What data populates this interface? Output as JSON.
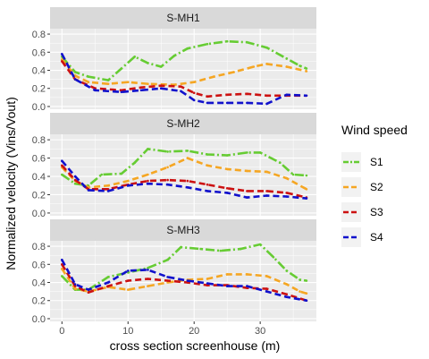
{
  "chart_data": {
    "type": "line",
    "facets": [
      "S-MH1",
      "S-MH2",
      "S-MH3"
    ],
    "xlabel": "cross section screenhouse (m)",
    "ylabel": "Normalized velocity (Vins/Vout)",
    "xlim": [
      -1.8,
      38.5
    ],
    "ylim": [
      -0.03,
      0.86
    ],
    "x_ticks": [
      0,
      10,
      20,
      30
    ],
    "y_ticks": [
      0.0,
      0.2,
      0.4,
      0.6,
      0.8
    ],
    "y_tick_labels": [
      "0.0",
      "0.2",
      "0.4",
      "0.6",
      "0.8"
    ],
    "legend": {
      "title": "Wind speed",
      "position": "right"
    },
    "series": [
      {
        "name": "S1",
        "color": "#66cc33"
      },
      {
        "name": "S2",
        "color": "#f5a623"
      },
      {
        "name": "S3",
        "color": "#cc1111"
      },
      {
        "name": "S4",
        "color": "#1111cc"
      }
    ],
    "panels": [
      {
        "facet": "S-MH1",
        "data": {
          "S1": [
            [
              0,
              0.55
            ],
            [
              2,
              0.38
            ],
            [
              4,
              0.33
            ],
            [
              7,
              0.29
            ],
            [
              9,
              0.42
            ],
            [
              11,
              0.55
            ],
            [
              13,
              0.48
            ],
            [
              15,
              0.44
            ],
            [
              17,
              0.56
            ],
            [
              19,
              0.64
            ],
            [
              22,
              0.69
            ],
            [
              25,
              0.72
            ],
            [
              28,
              0.71
            ],
            [
              31,
              0.65
            ],
            [
              34,
              0.53
            ],
            [
              36,
              0.45
            ],
            [
              37,
              0.42
            ]
          ],
          "S2": [
            [
              0,
              0.52
            ],
            [
              2,
              0.34
            ],
            [
              4,
              0.27
            ],
            [
              7,
              0.25
            ],
            [
              10,
              0.27
            ],
            [
              13,
              0.25
            ],
            [
              17,
              0.24
            ],
            [
              20,
              0.27
            ],
            [
              23,
              0.33
            ],
            [
              26,
              0.38
            ],
            [
              29,
              0.44
            ],
            [
              31,
              0.47
            ],
            [
              34,
              0.44
            ],
            [
              37,
              0.39
            ]
          ],
          "S3": [
            [
              0,
              0.5
            ],
            [
              2,
              0.3
            ],
            [
              5,
              0.2
            ],
            [
              9,
              0.18
            ],
            [
              12,
              0.21
            ],
            [
              15,
              0.23
            ],
            [
              18,
              0.22
            ],
            [
              20,
              0.15
            ],
            [
              22,
              0.11
            ],
            [
              25,
              0.13
            ],
            [
              28,
              0.14
            ],
            [
              31,
              0.12
            ],
            [
              34,
              0.12
            ],
            [
              37,
              0.12
            ]
          ],
          "S4": [
            [
              0,
              0.58
            ],
            [
              2,
              0.3
            ],
            [
              5,
              0.18
            ],
            [
              9,
              0.16
            ],
            [
              12,
              0.18
            ],
            [
              15,
              0.2
            ],
            [
              18,
              0.17
            ],
            [
              20,
              0.07
            ],
            [
              22,
              0.04
            ],
            [
              25,
              0.04
            ],
            [
              28,
              0.04
            ],
            [
              31,
              0.03
            ],
            [
              34,
              0.13
            ],
            [
              37,
              0.12
            ]
          ]
        }
      },
      {
        "facet": "S-MH2",
        "data": {
          "S1": [
            [
              0,
              0.42
            ],
            [
              2,
              0.32
            ],
            [
              4,
              0.3
            ],
            [
              6,
              0.42
            ],
            [
              9,
              0.43
            ],
            [
              11,
              0.55
            ],
            [
              13,
              0.7
            ],
            [
              16,
              0.67
            ],
            [
              19,
              0.68
            ],
            [
              22,
              0.64
            ],
            [
              25,
              0.63
            ],
            [
              28,
              0.66
            ],
            [
              30,
              0.66
            ],
            [
              33,
              0.55
            ],
            [
              35,
              0.42
            ],
            [
              37,
              0.41
            ]
          ],
          "S2": [
            [
              0,
              0.5
            ],
            [
              2,
              0.35
            ],
            [
              4,
              0.28
            ],
            [
              7,
              0.3
            ],
            [
              10,
              0.35
            ],
            [
              13,
              0.42
            ],
            [
              16,
              0.5
            ],
            [
              19,
              0.6
            ],
            [
              22,
              0.52
            ],
            [
              25,
              0.48
            ],
            [
              28,
              0.46
            ],
            [
              31,
              0.45
            ],
            [
              34,
              0.38
            ],
            [
              37,
              0.26
            ]
          ],
          "S3": [
            [
              0,
              0.52
            ],
            [
              2,
              0.36
            ],
            [
              4,
              0.26
            ],
            [
              7,
              0.26
            ],
            [
              10,
              0.31
            ],
            [
              13,
              0.35
            ],
            [
              16,
              0.36
            ],
            [
              19,
              0.35
            ],
            [
              22,
              0.31
            ],
            [
              25,
              0.27
            ],
            [
              28,
              0.24
            ],
            [
              31,
              0.24
            ],
            [
              34,
              0.22
            ],
            [
              37,
              0.17
            ]
          ],
          "S4": [
            [
              0,
              0.57
            ],
            [
              2,
              0.4
            ],
            [
              4,
              0.25
            ],
            [
              7,
              0.24
            ],
            [
              10,
              0.3
            ],
            [
              13,
              0.32
            ],
            [
              16,
              0.31
            ],
            [
              19,
              0.28
            ],
            [
              22,
              0.24
            ],
            [
              25,
              0.22
            ],
            [
              28,
              0.17
            ],
            [
              31,
              0.19
            ],
            [
              34,
              0.18
            ],
            [
              37,
              0.16
            ]
          ]
        }
      },
      {
        "facet": "S-MH3",
        "data": {
          "S1": [
            [
              0,
              0.47
            ],
            [
              2,
              0.32
            ],
            [
              4,
              0.32
            ],
            [
              7,
              0.46
            ],
            [
              10,
              0.51
            ],
            [
              13,
              0.56
            ],
            [
              16,
              0.65
            ],
            [
              18,
              0.79
            ],
            [
              21,
              0.77
            ],
            [
              24,
              0.75
            ],
            [
              27,
              0.77
            ],
            [
              30,
              0.82
            ],
            [
              32,
              0.68
            ],
            [
              34,
              0.53
            ],
            [
              36,
              0.43
            ],
            [
              37,
              0.42
            ]
          ],
          "S2": [
            [
              0,
              0.55
            ],
            [
              2,
              0.33
            ],
            [
              4,
              0.3
            ],
            [
              7,
              0.35
            ],
            [
              10,
              0.32
            ],
            [
              13,
              0.36
            ],
            [
              16,
              0.4
            ],
            [
              19,
              0.43
            ],
            [
              22,
              0.44
            ],
            [
              25,
              0.49
            ],
            [
              28,
              0.49
            ],
            [
              31,
              0.47
            ],
            [
              34,
              0.38
            ],
            [
              36,
              0.3
            ],
            [
              37,
              0.28
            ]
          ],
          "S3": [
            [
              0,
              0.6
            ],
            [
              2,
              0.36
            ],
            [
              4,
              0.29
            ],
            [
              7,
              0.36
            ],
            [
              10,
              0.42
            ],
            [
              13,
              0.44
            ],
            [
              16,
              0.42
            ],
            [
              19,
              0.4
            ],
            [
              22,
              0.37
            ],
            [
              25,
              0.37
            ],
            [
              28,
              0.34
            ],
            [
              31,
              0.33
            ],
            [
              34,
              0.27
            ],
            [
              37,
              0.2
            ]
          ],
          "S4": [
            [
              0,
              0.65
            ],
            [
              2,
              0.38
            ],
            [
              4,
              0.32
            ],
            [
              7,
              0.4
            ],
            [
              10,
              0.53
            ],
            [
              13,
              0.54
            ],
            [
              16,
              0.46
            ],
            [
              19,
              0.42
            ],
            [
              22,
              0.39
            ],
            [
              25,
              0.36
            ],
            [
              28,
              0.36
            ],
            [
              31,
              0.3
            ],
            [
              34,
              0.24
            ],
            [
              37,
              0.2
            ]
          ]
        }
      }
    ]
  }
}
